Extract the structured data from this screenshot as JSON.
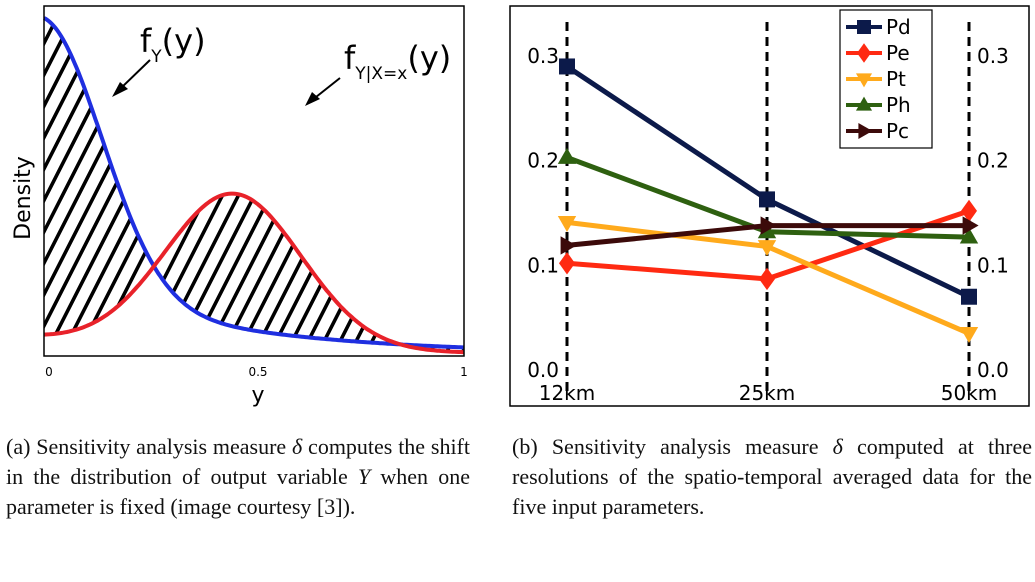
{
  "panel_a": {
    "ylabel": "Density",
    "xlabel": "y",
    "xticks": [
      "0",
      "0.5",
      "1"
    ],
    "label_fy": {
      "base": "f",
      "sub": "Y",
      "arg": "(y)"
    },
    "label_fyx": {
      "base": "f",
      "sub": "Y|X=x",
      "arg": "(y)"
    },
    "colors": {
      "marginal": "#1f2fe0",
      "conditional": "#e8222a"
    }
  },
  "caption_a": {
    "prefix": "(a) Sensitivity analysis measure ",
    "symbol": "δ",
    "middle": " computes the shift in the distribution of output variable ",
    "symbol2": "Y",
    "suffix": " when one parameter is fixed (image courtesy [3])."
  },
  "caption_b": {
    "prefix": "(b) Sensitivity analysis measure ",
    "symbol": "δ",
    "suffix": " computed at three resolutions of the spatio-temporal averaged data for the five input parameters."
  },
  "chart_data": [
    {
      "type": "area",
      "xlabel": "y",
      "ylabel": "Density",
      "xlim": [
        0,
        1
      ],
      "xticks": [
        0,
        0.5,
        1
      ]
    },
    {
      "type": "line",
      "categories": [
        "12km",
        "25km",
        "50km"
      ],
      "ylim": [
        0,
        0.3
      ],
      "yticks": [
        "0.0",
        "0.1",
        "0.2",
        "0.3"
      ],
      "legend_position": "top-right",
      "series": [
        {
          "name": "Pd",
          "color": "#0c1a4a",
          "marker": "square",
          "values": [
            0.29,
            0.163,
            0.07
          ]
        },
        {
          "name": "Pe",
          "color": "#ff2a12",
          "marker": "diamond",
          "values": [
            0.102,
            0.087,
            0.152
          ]
        },
        {
          "name": "Pt",
          "color": "#ffaa1c",
          "marker": "triangle-down",
          "values": [
            0.141,
            0.118,
            0.035
          ]
        },
        {
          "name": "Ph",
          "color": "#2e6010",
          "marker": "triangle-up",
          "values": [
            0.203,
            0.132,
            0.127
          ]
        },
        {
          "name": "Pc",
          "color": "#3c0a0a",
          "marker": "triangle-right",
          "values": [
            0.119,
            0.138,
            0.138
          ]
        }
      ]
    }
  ]
}
